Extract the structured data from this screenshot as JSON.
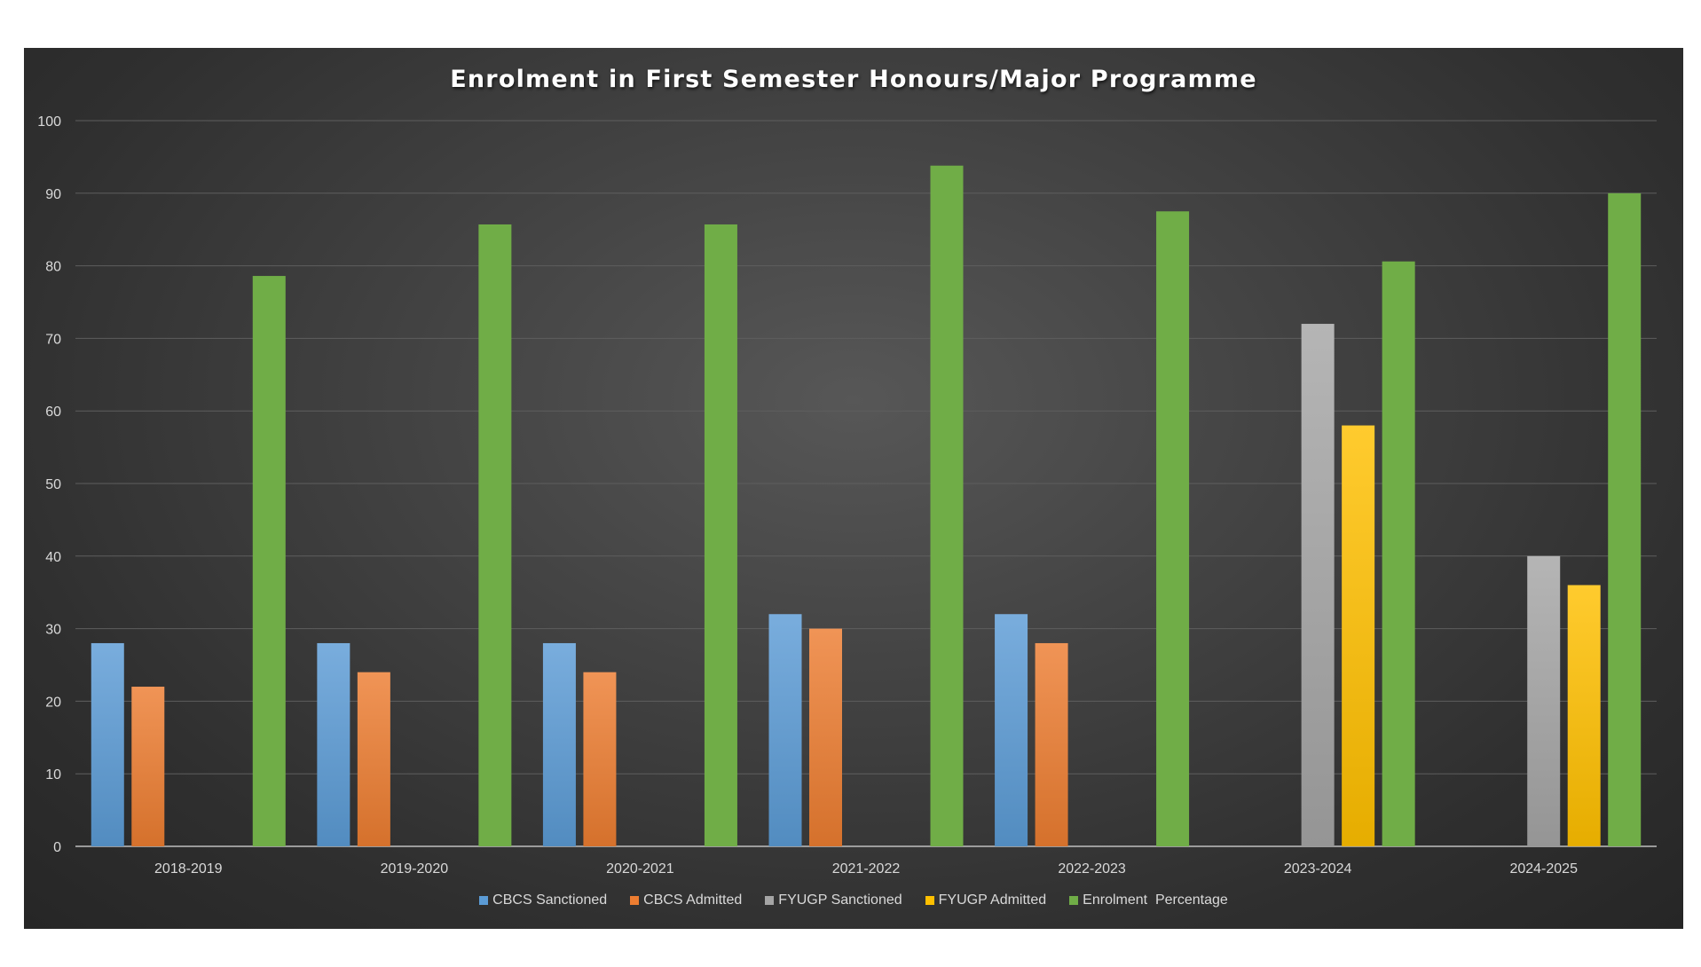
{
  "chart_data": {
    "type": "bar",
    "title": "Enrolment in First Semester Honours/Major Programme",
    "xlabel": "",
    "ylabel": "",
    "ylim": [
      0,
      100
    ],
    "yticks": [
      "0",
      "10",
      "20",
      "30",
      "40",
      "50",
      "60",
      "70",
      "80",
      "90",
      "100"
    ],
    "grid": true,
    "legend_position": "bottom",
    "categories": [
      "2018-2019",
      "2019-2020",
      "2020-2021",
      "2021-2022",
      "2022-2023",
      "2023-2024",
      "2024-2025"
    ],
    "series": [
      {
        "name": "CBCS Sanctioned",
        "color": "#5B9BD5",
        "values": [
          28,
          28,
          28,
          32,
          32,
          null,
          null
        ]
      },
      {
        "name": "CBCS Admitted",
        "color": "#ED7D31",
        "values": [
          22,
          24,
          24,
          30,
          28,
          null,
          null
        ]
      },
      {
        "name": "FYUGP Sanctioned",
        "color": "#A5A5A5",
        "values": [
          null,
          null,
          null,
          null,
          null,
          72,
          40
        ]
      },
      {
        "name": "FYUGP Admitted",
        "color": "#FFC000",
        "values": [
          null,
          null,
          null,
          null,
          null,
          58,
          36
        ]
      },
      {
        "name": "Enrolment  Percentage",
        "color": "#70AD47",
        "values": [
          78.6,
          85.7,
          85.7,
          93.8,
          87.5,
          80.6,
          90
        ]
      }
    ]
  }
}
